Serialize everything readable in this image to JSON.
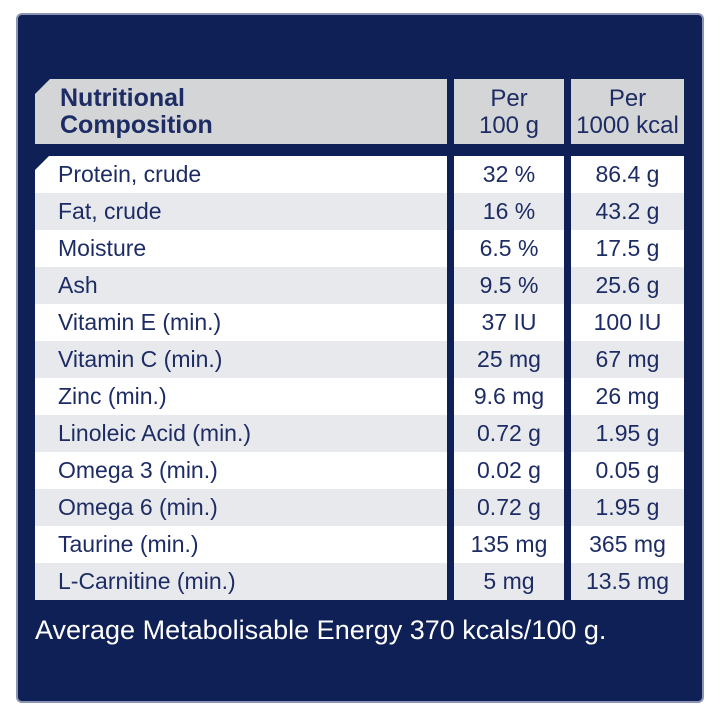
{
  "colors": {
    "panel_navy": "#0f2056",
    "panel_edge": "#8b94b3",
    "header_gray": "#d4d5d7",
    "row_alt_gray": "#e8e9ec",
    "row_white": "#ffffff",
    "text_navy": "#1d2c64",
    "footer_text": "#ffffff"
  },
  "table": {
    "header": {
      "title_line1": "Nutritional",
      "title_line2": "Composition",
      "col1_line1": "Per",
      "col1_line2": "100 g",
      "col2_line1": "Per",
      "col2_line2": "1000 kcal"
    },
    "rows": [
      {
        "label": "Protein, crude",
        "per_100g": "32 %",
        "per_1000kcal": "86.4 g"
      },
      {
        "label": "Fat, crude",
        "per_100g": "16 %",
        "per_1000kcal": "43.2 g"
      },
      {
        "label": "Moisture",
        "per_100g": "6.5 %",
        "per_1000kcal": "17.5 g"
      },
      {
        "label": "Ash",
        "per_100g": "9.5 %",
        "per_1000kcal": "25.6 g"
      },
      {
        "label": "Vitamin E (min.)",
        "per_100g": "37 IU",
        "per_1000kcal": "100 IU"
      },
      {
        "label": "Vitamin C (min.)",
        "per_100g": "25 mg",
        "per_1000kcal": "67 mg"
      },
      {
        "label": "Zinc (min.)",
        "per_100g": "9.6 mg",
        "per_1000kcal": "26 mg"
      },
      {
        "label": "Linoleic Acid (min.)",
        "per_100g": "0.72 g",
        "per_1000kcal": "1.95 g"
      },
      {
        "label": "Omega 3 (min.)",
        "per_100g": "0.02 g",
        "per_1000kcal": "0.05 g"
      },
      {
        "label": "Omega 6 (min.)",
        "per_100g": "0.72 g",
        "per_1000kcal": "1.95 g"
      },
      {
        "label": "Taurine (min.)",
        "per_100g": "135 mg",
        "per_1000kcal": "365 mg"
      },
      {
        "label": "L-Carnitine (min.)",
        "per_100g": "5 mg",
        "per_1000kcal": "13.5 mg"
      }
    ],
    "footer": "Average Metabolisable Energy 370 kcals/100 g."
  }
}
